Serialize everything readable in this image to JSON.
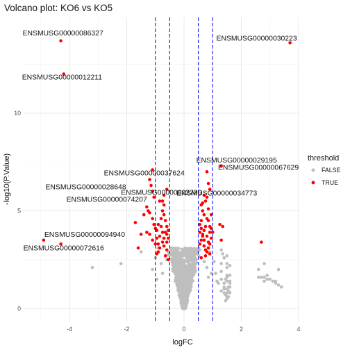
{
  "chart_data": {
    "type": "scatter",
    "title": "Volcano plot: KO6 vs KO5",
    "xlabel": "logFC",
    "ylabel": "-log10(P.Value)",
    "xlim": [
      -5.6,
      4.0
    ],
    "ylim": [
      -0.7,
      14.9
    ],
    "xticks": [
      -4,
      -2,
      0,
      2,
      4
    ],
    "yticks": [
      0,
      5,
      10
    ],
    "grid": true,
    "vlines": {
      "x": [
        -1,
        -0.5,
        0.5,
        1
      ],
      "color": "#0000ff",
      "style": "dashed"
    },
    "legend": {
      "title": "threshold",
      "position": "right",
      "entries": [
        {
          "label": "FALSE",
          "color": "#bebebe"
        },
        {
          "label": "TRUE",
          "color": "#ff0000"
        }
      ]
    },
    "series": [
      {
        "name": "FALSE",
        "color": "#bebebe",
        "points": [
          [
            -3.2,
            2.1
          ],
          [
            -2.2,
            2.3
          ],
          [
            -1.5,
            2.9
          ],
          [
            -1.1,
            2.0
          ],
          [
            -1.0,
            2.6
          ],
          [
            -0.95,
            1.5
          ],
          [
            -0.9,
            3.1
          ],
          [
            -0.8,
            2.3
          ],
          [
            -0.75,
            1.8
          ],
          [
            -0.6,
            2.5
          ],
          [
            -0.55,
            2.9
          ],
          [
            -0.45,
            3.1
          ],
          [
            -0.4,
            2.4
          ],
          [
            -0.35,
            1.9
          ],
          [
            -0.3,
            2.2
          ],
          [
            0.35,
            2.3
          ],
          [
            0.4,
            1.9
          ],
          [
            0.45,
            2.8
          ],
          [
            0.55,
            3.0
          ],
          [
            0.6,
            2.6
          ],
          [
            0.7,
            2.4
          ],
          [
            0.8,
            2.1
          ],
          [
            0.85,
            1.6
          ],
          [
            0.9,
            2.9
          ],
          [
            0.95,
            1.8
          ],
          [
            1.3,
            1.9
          ],
          [
            1.4,
            1.3
          ],
          [
            1.5,
            2.1
          ],
          [
            1.6,
            1.7
          ],
          [
            1.4,
            2.6
          ],
          [
            1.6,
            2.2
          ],
          [
            1.3,
            1.5
          ],
          [
            1.5,
            1.6
          ],
          [
            1.5,
            1.4
          ],
          [
            1.6,
            1.1
          ],
          [
            1.4,
            1.3
          ],
          [
            1.3,
            0.9
          ],
          [
            1.4,
            1.0
          ],
          [
            1.5,
            0.8
          ],
          [
            1.6,
            0.8
          ],
          [
            1.55,
            1.1
          ],
          [
            1.45,
            1.5
          ],
          [
            1.5,
            1.7
          ],
          [
            1.6,
            1.4
          ],
          [
            1.4,
            1.1
          ],
          [
            1.5,
            0.6
          ],
          [
            1.45,
            0.4
          ],
          [
            1.5,
            0.5
          ],
          [
            1.55,
            0.6
          ],
          [
            1.4,
            0.8
          ],
          [
            2.6,
            1.6
          ],
          [
            2.8,
            1.4
          ],
          [
            3.0,
            1.5
          ],
          [
            3.2,
            1.3
          ],
          [
            3.3,
            2.0
          ],
          [
            2.9,
            1.7
          ],
          [
            3.1,
            1.4
          ],
          [
            3.3,
            1.2
          ],
          [
            2.8,
            1.6
          ],
          [
            2.9,
            1.5
          ],
          [
            1.3,
            3.0
          ],
          [
            1.5,
            2.7
          ],
          [
            1.5,
            2.3
          ],
          [
            1.4,
            2.6
          ],
          [
            1.3,
            2.3
          ],
          [
            1.35,
            2.8
          ],
          [
            1.05,
            2.4
          ],
          [
            1.1,
            1.8
          ],
          [
            1.2,
            1.3
          ],
          [
            1.15,
            1.4
          ],
          [
            3.2,
            1.4
          ],
          [
            2.8,
            2.3
          ],
          [
            2.7,
            1.6
          ],
          [
            3.4,
            1.1
          ],
          [
            2.6,
            2.0
          ],
          [
            1.6,
            1.3
          ],
          [
            1.5,
            1.0
          ],
          [
            1.55,
            0.9
          ],
          [
            1.45,
            0.7
          ],
          [
            0.1,
            1.6
          ]
        ]
      },
      {
        "name": "TRUE",
        "color": "#ff0000",
        "points": [
          [
            -4.3,
            13.7
          ],
          [
            -4.2,
            12.0
          ],
          [
            3.7,
            13.6
          ],
          [
            -4.3,
            3.3
          ],
          [
            -4.9,
            3.5
          ],
          [
            -1.1,
            7.1
          ],
          [
            -1.2,
            6.6
          ],
          [
            -1.15,
            6.3
          ],
          [
            -1.1,
            6.0
          ],
          [
            -1.05,
            5.7
          ],
          [
            -1.3,
            5.2
          ],
          [
            -1.25,
            5.0
          ],
          [
            -1.2,
            4.9
          ],
          [
            -1.1,
            4.6
          ],
          [
            -1.05,
            4.3
          ],
          [
            -1.0,
            4.1
          ],
          [
            -1.3,
            3.9
          ],
          [
            -1.2,
            3.8
          ],
          [
            -1.1,
            3.5
          ],
          [
            -1.0,
            3.3
          ],
          [
            -1.5,
            3.8
          ],
          [
            -1.6,
            3.1
          ],
          [
            -1.7,
            4.4
          ],
          [
            -1.4,
            4.8
          ],
          [
            -0.95,
            3.6
          ],
          [
            -0.9,
            3.3
          ],
          [
            -0.85,
            3.7
          ],
          [
            -0.8,
            4.2
          ],
          [
            -0.7,
            4.8
          ],
          [
            -0.75,
            5.0
          ],
          [
            -0.6,
            4.2
          ],
          [
            -0.65,
            3.9
          ],
          [
            -0.55,
            3.6
          ],
          [
            -0.6,
            3.4
          ],
          [
            -0.7,
            3.2
          ],
          [
            -0.65,
            4.5
          ],
          [
            -0.75,
            3.9
          ],
          [
            -0.85,
            5.5
          ],
          [
            -0.7,
            5.3
          ],
          [
            -0.8,
            4.6
          ],
          [
            -0.9,
            4.3
          ],
          [
            -0.95,
            4.0
          ],
          [
            -0.55,
            4.0
          ],
          [
            -0.6,
            3.8
          ],
          [
            -0.7,
            3.6
          ],
          [
            -0.75,
            3.4
          ],
          [
            -0.85,
            3.1
          ],
          [
            -0.9,
            2.9
          ],
          [
            -0.95,
            2.8
          ],
          [
            -0.6,
            3.0
          ],
          [
            -0.65,
            2.7
          ],
          [
            -0.55,
            2.5
          ],
          [
            -0.6,
            6.1
          ],
          [
            -0.75,
            5.5
          ],
          [
            -0.7,
            5.8
          ],
          [
            0.8,
            7.0
          ],
          [
            0.85,
            6.4
          ],
          [
            0.9,
            6.1
          ],
          [
            0.7,
            5.8
          ],
          [
            0.75,
            5.5
          ],
          [
            0.6,
            5.3
          ],
          [
            0.65,
            5.0
          ],
          [
            0.7,
            4.8
          ],
          [
            0.6,
            4.5
          ],
          [
            0.55,
            4.3
          ],
          [
            0.6,
            4.1
          ],
          [
            0.55,
            3.9
          ],
          [
            0.65,
            3.7
          ],
          [
            0.6,
            3.5
          ],
          [
            0.55,
            3.3
          ],
          [
            0.7,
            3.2
          ],
          [
            0.75,
            3.0
          ],
          [
            0.8,
            2.9
          ],
          [
            0.85,
            3.1
          ],
          [
            0.9,
            3.3
          ],
          [
            0.95,
            3.6
          ],
          [
            1.0,
            3.9
          ],
          [
            0.9,
            4.2
          ],
          [
            0.85,
            4.5
          ],
          [
            0.95,
            4.8
          ],
          [
            0.85,
            5.1
          ],
          [
            0.8,
            4.6
          ],
          [
            0.75,
            4.2
          ],
          [
            0.7,
            4.0
          ],
          [
            0.65,
            3.8
          ],
          [
            0.7,
            3.5
          ],
          [
            0.8,
            3.7
          ],
          [
            0.9,
            3.9
          ],
          [
            0.95,
            4.1
          ],
          [
            0.85,
            3.4
          ],
          [
            1.3,
            7.3
          ],
          [
            1.25,
            4.3
          ],
          [
            1.35,
            4.2
          ],
          [
            1.3,
            3.5
          ],
          [
            2.7,
            3.4
          ],
          [
            0.75,
            2.7
          ],
          [
            0.6,
            2.6
          ],
          [
            0.9,
            2.8
          ],
          [
            0.65,
            5.4
          ],
          [
            0.8,
            5.7
          ]
        ]
      }
    ],
    "annotations": [
      {
        "text": "ENSMUSG00000086327",
        "x": -4.3,
        "y": 13.7
      },
      {
        "text": "ENSMUSG00000030223",
        "x": 3.7,
        "y": 13.6
      },
      {
        "text": "ENSMUSG00000012211",
        "x": -4.2,
        "y": 12.0
      },
      {
        "text": "ENSMUSG00000037624",
        "x": -1.1,
        "y": 7.1
      },
      {
        "text": "ENSMUSG00000029195",
        "x": 1.3,
        "y": 7.3
      },
      {
        "text": "ENSMUSG00000028648",
        "x": -1.2,
        "y": 6.6
      },
      {
        "text": "ENSMUSG00000022706",
        "x": -0.6,
        "y": 6.1
      },
      {
        "text": "ENSMUSG00000067629",
        "x": 0.8,
        "y": 7.0
      },
      {
        "text": "ENSMUSG00000074207",
        "x": -1.1,
        "y": 6.0
      },
      {
        "text": "ENSMUSG00000034773",
        "x": 0.9,
        "y": 6.1
      },
      {
        "text": "ENSMUSG00000094940",
        "x": -4.9,
        "y": 3.5
      },
      {
        "text": "ENSMUSG00000072616",
        "x": -4.3,
        "y": 3.3
      }
    ]
  }
}
